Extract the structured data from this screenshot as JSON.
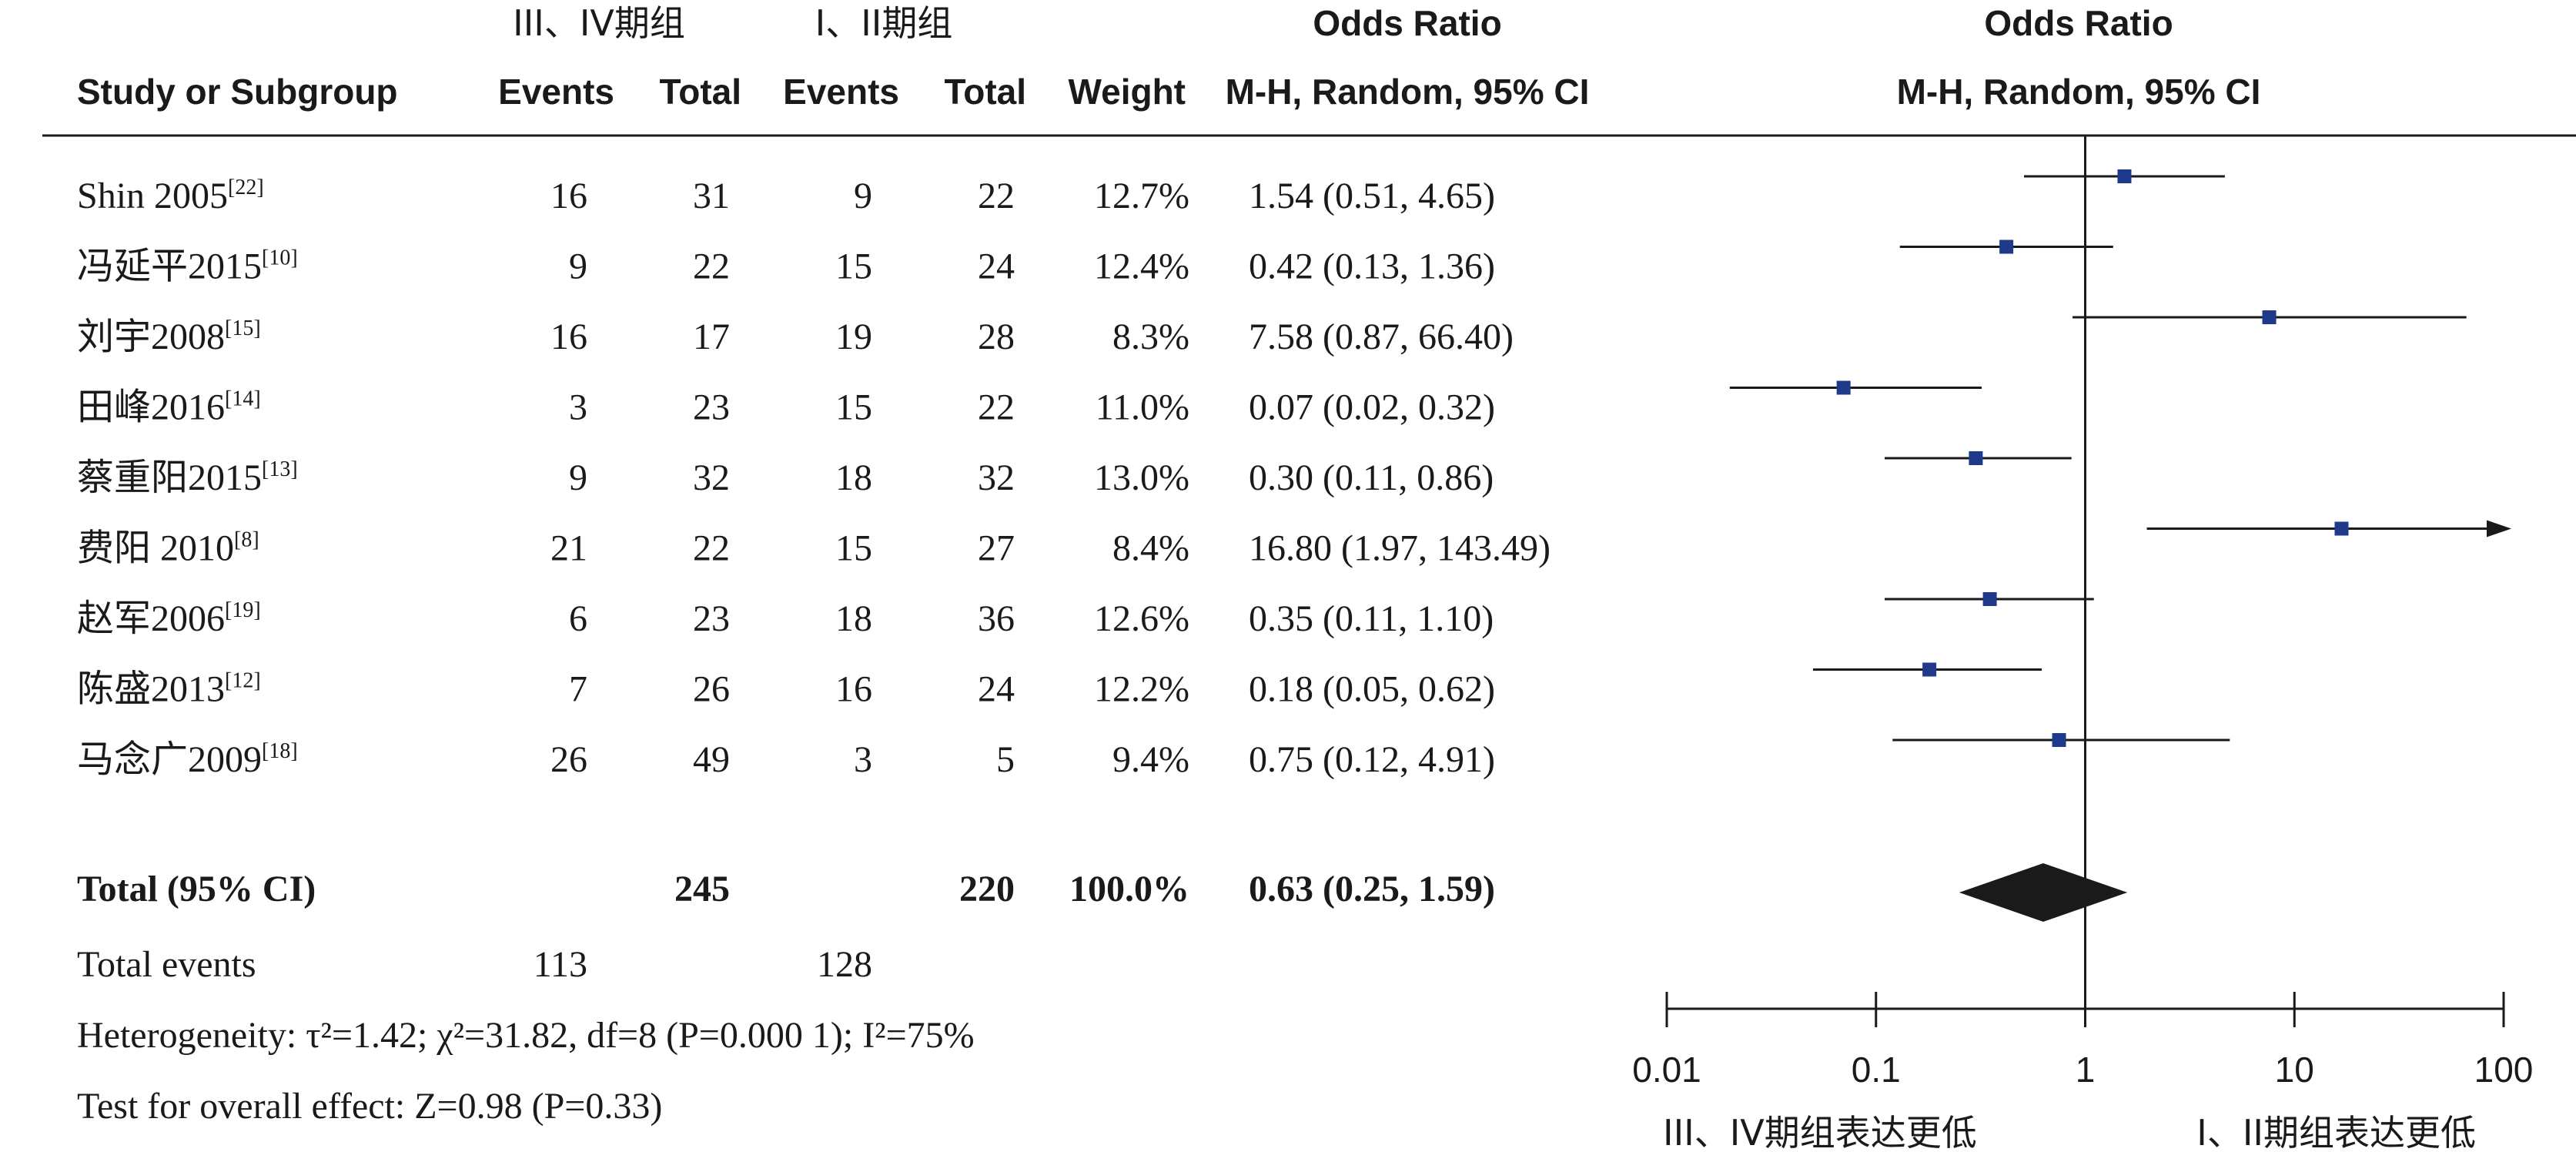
{
  "header": {
    "group1_label": "III、IV期组",
    "group2_label": "I、II期组",
    "or_title": "Odds Ratio",
    "or_method": "M-H, Random, 95% CI",
    "plot_title": "Odds Ratio",
    "plot_method": "M-H, Random, 95% CI",
    "study_col": "Study or Subgroup",
    "events1": "Events",
    "total1": "Total",
    "events2": "Events",
    "total2": "Total",
    "weight": "Weight"
  },
  "studies": [
    {
      "name": "Shin 2005",
      "ref": "[22]",
      "e1": "16",
      "t1": "31",
      "e2": "9",
      "t2": "22",
      "weight": "12.7%",
      "ci_text": "1.54 (0.51, 4.65)"
    },
    {
      "name": "冯延平2015",
      "ref": "[10]",
      "e1": "9",
      "t1": "22",
      "e2": "15",
      "t2": "24",
      "weight": "12.4%",
      "ci_text": "0.42 (0.13, 1.36)"
    },
    {
      "name": "刘宇2008",
      "ref": "[15]",
      "e1": "16",
      "t1": "17",
      "e2": "19",
      "t2": "28",
      "weight": "8.3%",
      "ci_text": "7.58 (0.87, 66.40)"
    },
    {
      "name": "田峰2016",
      "ref": "[14]",
      "e1": "3",
      "t1": "23",
      "e2": "15",
      "t2": "22",
      "weight": "11.0%",
      "ci_text": "0.07 (0.02, 0.32)"
    },
    {
      "name": "蔡重阳2015",
      "ref": "[13]",
      "e1": "9",
      "t1": "32",
      "e2": "18",
      "t2": "32",
      "weight": "13.0%",
      "ci_text": "0.30 (0.11, 0.86)"
    },
    {
      "name": "费阳 2010",
      "ref": "[8]",
      "e1": "21",
      "t1": "22",
      "e2": "15",
      "t2": "27",
      "weight": "8.4%",
      "ci_text": "16.80 (1.97, 143.49)"
    },
    {
      "name": "赵军2006",
      "ref": "[19]",
      "e1": "6",
      "t1": "23",
      "e2": "18",
      "t2": "36",
      "weight": "12.6%",
      "ci_text": "0.35 (0.11, 1.10)"
    },
    {
      "name": "陈盛2013",
      "ref": "[12]",
      "e1": "7",
      "t1": "26",
      "e2": "16",
      "t2": "24",
      "weight": "12.2%",
      "ci_text": "0.18 (0.05, 0.62)"
    },
    {
      "name": "马念广2009",
      "ref": "[18]",
      "e1": "26",
      "t1": "49",
      "e2": "3",
      "t2": "5",
      "weight": "9.4%",
      "ci_text": "0.75 (0.12, 4.91)"
    }
  ],
  "total": {
    "label": "Total (95% CI)",
    "t1": "245",
    "t2": "220",
    "weight": "100.0%",
    "ci_text": "0.63 (0.25, 1.59)"
  },
  "total_events": {
    "label": "Total events",
    "e1": "113",
    "e2": "128"
  },
  "heterogeneity_text": "Heterogeneity: τ²=1.42; χ²=31.82, df=8 (P=0.000 1); I²=75%",
  "overall_effect_text": "Test for overall effect: Z=0.98 (P=0.33)",
  "favours": {
    "left": "III、IV期组表达更低",
    "right": "I、II期组表达更低"
  },
  "colors": {
    "study_marker": "#1f3a8a",
    "summary_diamond": "#1a1a1a",
    "line": "#1a1a1a"
  },
  "chart_data": {
    "type": "forest",
    "scale": "log",
    "xlim": [
      0.01,
      100
    ],
    "ticks": [
      0.01,
      0.1,
      1,
      10,
      100
    ],
    "tick_labels": [
      "0.01",
      "0.1",
      "1",
      "10",
      "100"
    ],
    "studies": [
      {
        "or": 1.54,
        "lo": 0.51,
        "hi": 4.65
      },
      {
        "or": 0.42,
        "lo": 0.13,
        "hi": 1.36
      },
      {
        "or": 7.58,
        "lo": 0.87,
        "hi": 66.4
      },
      {
        "or": 0.07,
        "lo": 0.02,
        "hi": 0.32
      },
      {
        "or": 0.3,
        "lo": 0.11,
        "hi": 0.86
      },
      {
        "or": 16.8,
        "lo": 1.97,
        "hi": 143.49
      },
      {
        "or": 0.35,
        "lo": 0.11,
        "hi": 1.1
      },
      {
        "or": 0.18,
        "lo": 0.05,
        "hi": 0.62
      },
      {
        "or": 0.75,
        "lo": 0.12,
        "hi": 4.91
      }
    ],
    "summary": {
      "or": 0.63,
      "lo": 0.25,
      "hi": 1.59
    }
  }
}
